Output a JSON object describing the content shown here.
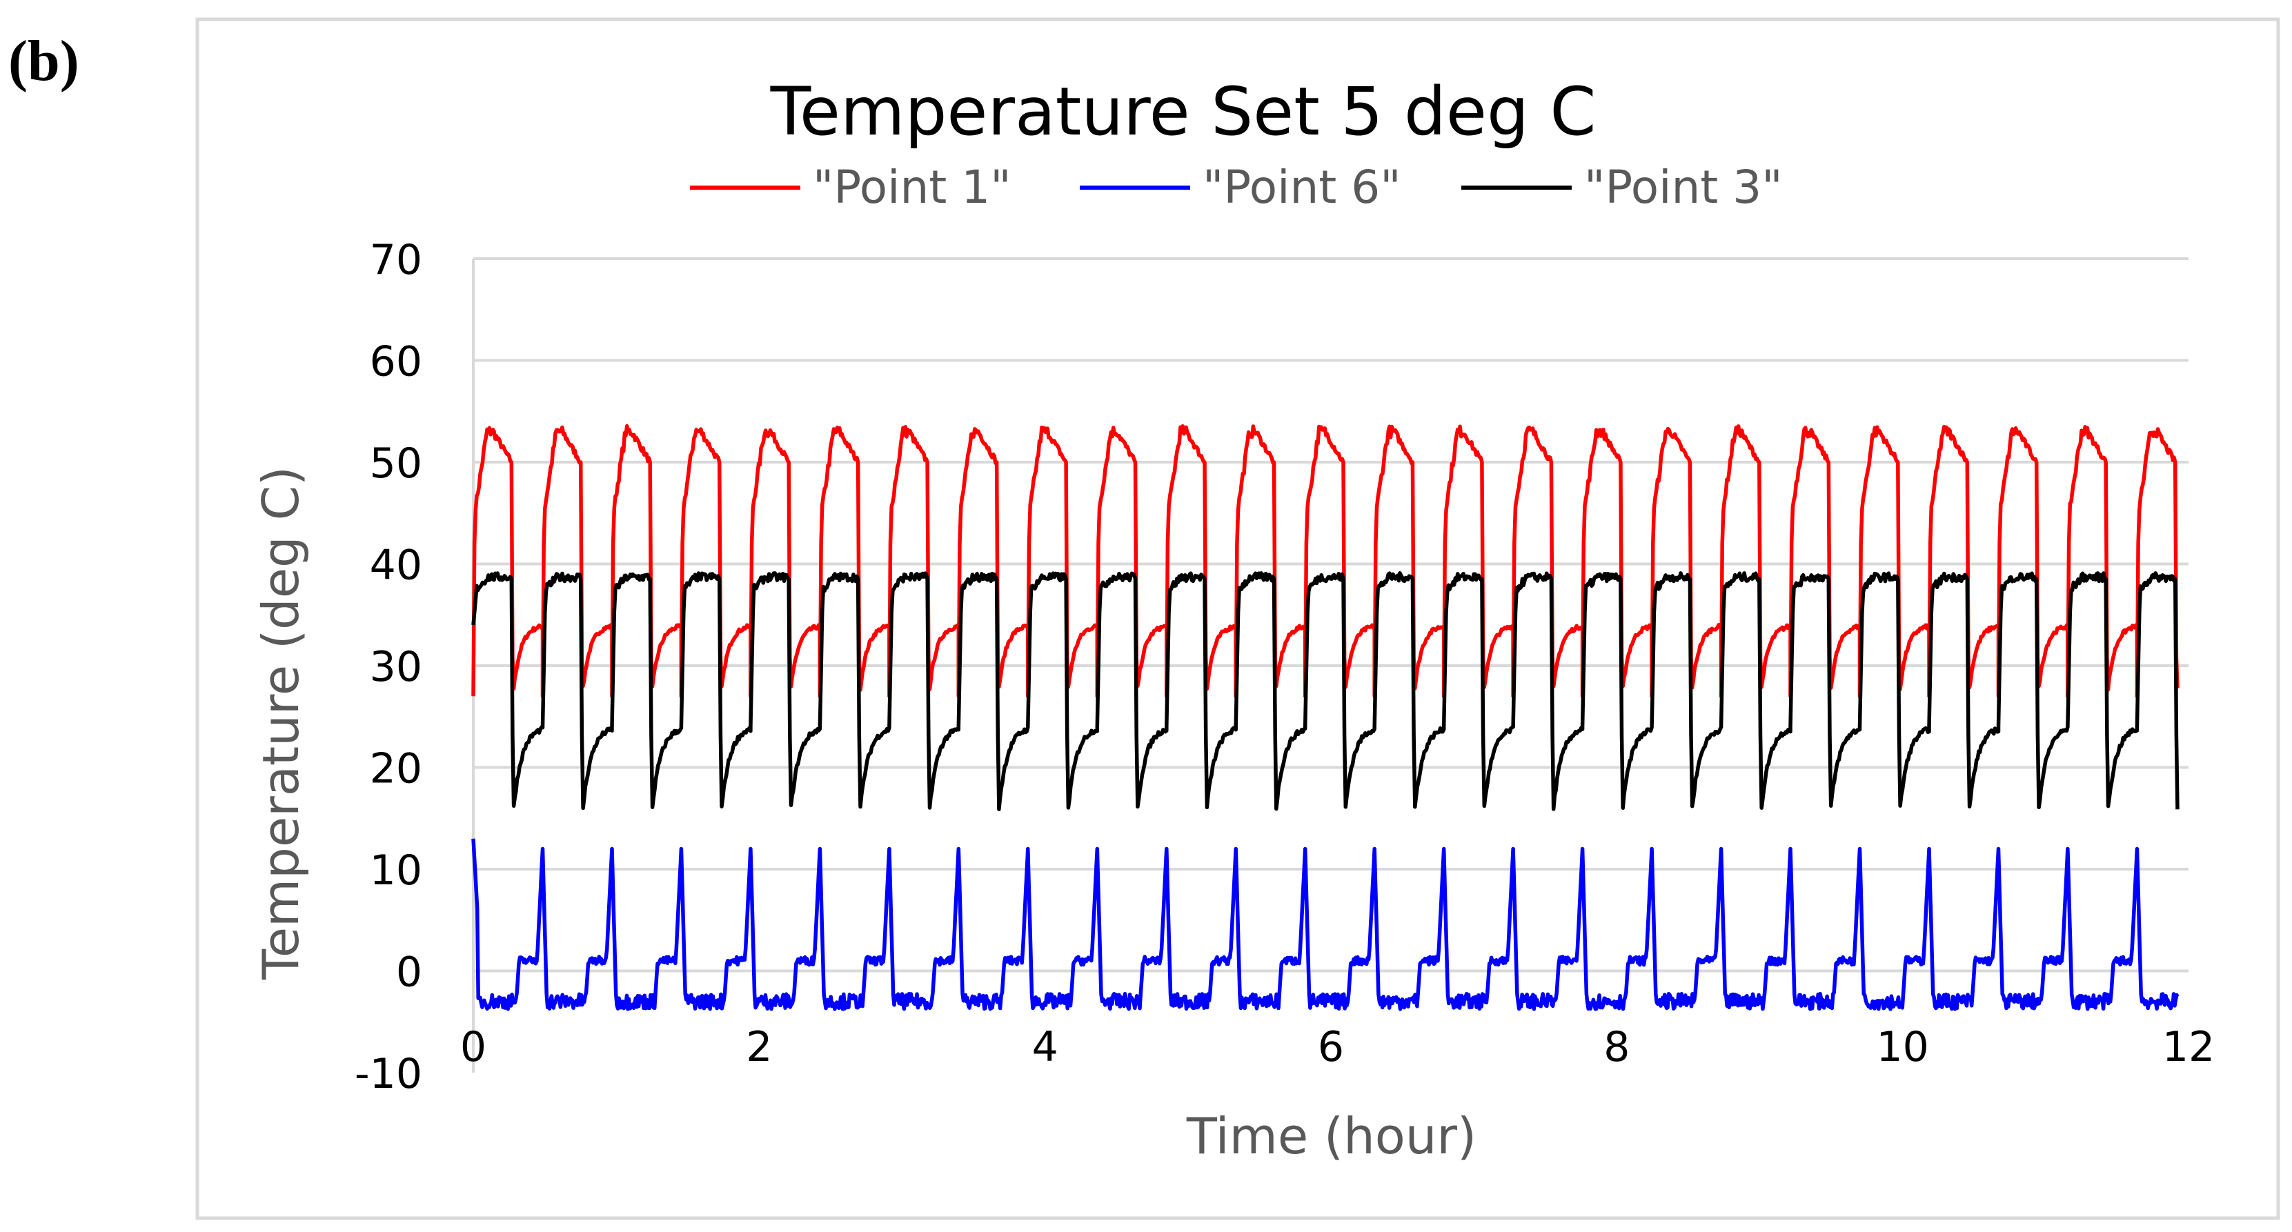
{
  "panel_label": "(b)",
  "chart_data": {
    "type": "line",
    "title": "Temperature  Set 5 deg C",
    "xlabel": "Time (hour)",
    "ylabel": "Temperature (deg C)",
    "xlim": [
      0,
      12
    ],
    "ylim": [
      -10,
      70
    ],
    "xticks": [
      "0",
      "2",
      "4",
      "6",
      "8",
      "10",
      "12"
    ],
    "yticks": [
      "-10",
      "0",
      "10",
      "20",
      "30",
      "40",
      "50",
      "60",
      "70"
    ],
    "grid": "horizontal",
    "legend_position": "top",
    "cycle_period_hours": 0.485,
    "series": [
      {
        "name": "\"Point 1\"",
        "color": "#ff0000",
        "cycle_shape": {
          "on_fraction": 0.55,
          "start_level": 45,
          "peak_level": 53,
          "end_of_on_level": 50,
          "drop_min": 27,
          "off_recovery_level": 34
        },
        "x": [
          0.0,
          0.05,
          0.15,
          0.25,
          0.35,
          0.42,
          0.45,
          0.6,
          0.85
        ],
        "y": [
          45,
          50,
          52,
          54.5,
          53,
          47,
          26,
          31,
          34
        ]
      },
      {
        "name": "\"Point 6\"",
        "color": "#0000ff",
        "cycle_shape": {
          "start_level": 13,
          "rest_level": -3,
          "pre_spike_level": 1,
          "spike_peak": 12
        },
        "x": [
          0.0,
          0.1,
          0.2,
          0.3,
          0.45,
          0.55,
          0.6,
          0.7,
          1.05
        ],
        "y": [
          13,
          4,
          -3,
          -4,
          -6,
          5,
          9,
          -2,
          12
        ]
      },
      {
        "name": "\"Point 3\"",
        "color": "#000000",
        "cycle_shape": {
          "on_fraction": 0.55,
          "start_level": 34,
          "plateau_level": 38.5,
          "drop_min": 15.5,
          "off_recovery_level": 24
        },
        "x": [
          0.0,
          0.1,
          0.2,
          0.35,
          0.42,
          0.45,
          0.6,
          0.85
        ],
        "y": [
          34,
          37,
          39,
          38,
          33,
          15.5,
          22,
          38
        ]
      }
    ]
  }
}
